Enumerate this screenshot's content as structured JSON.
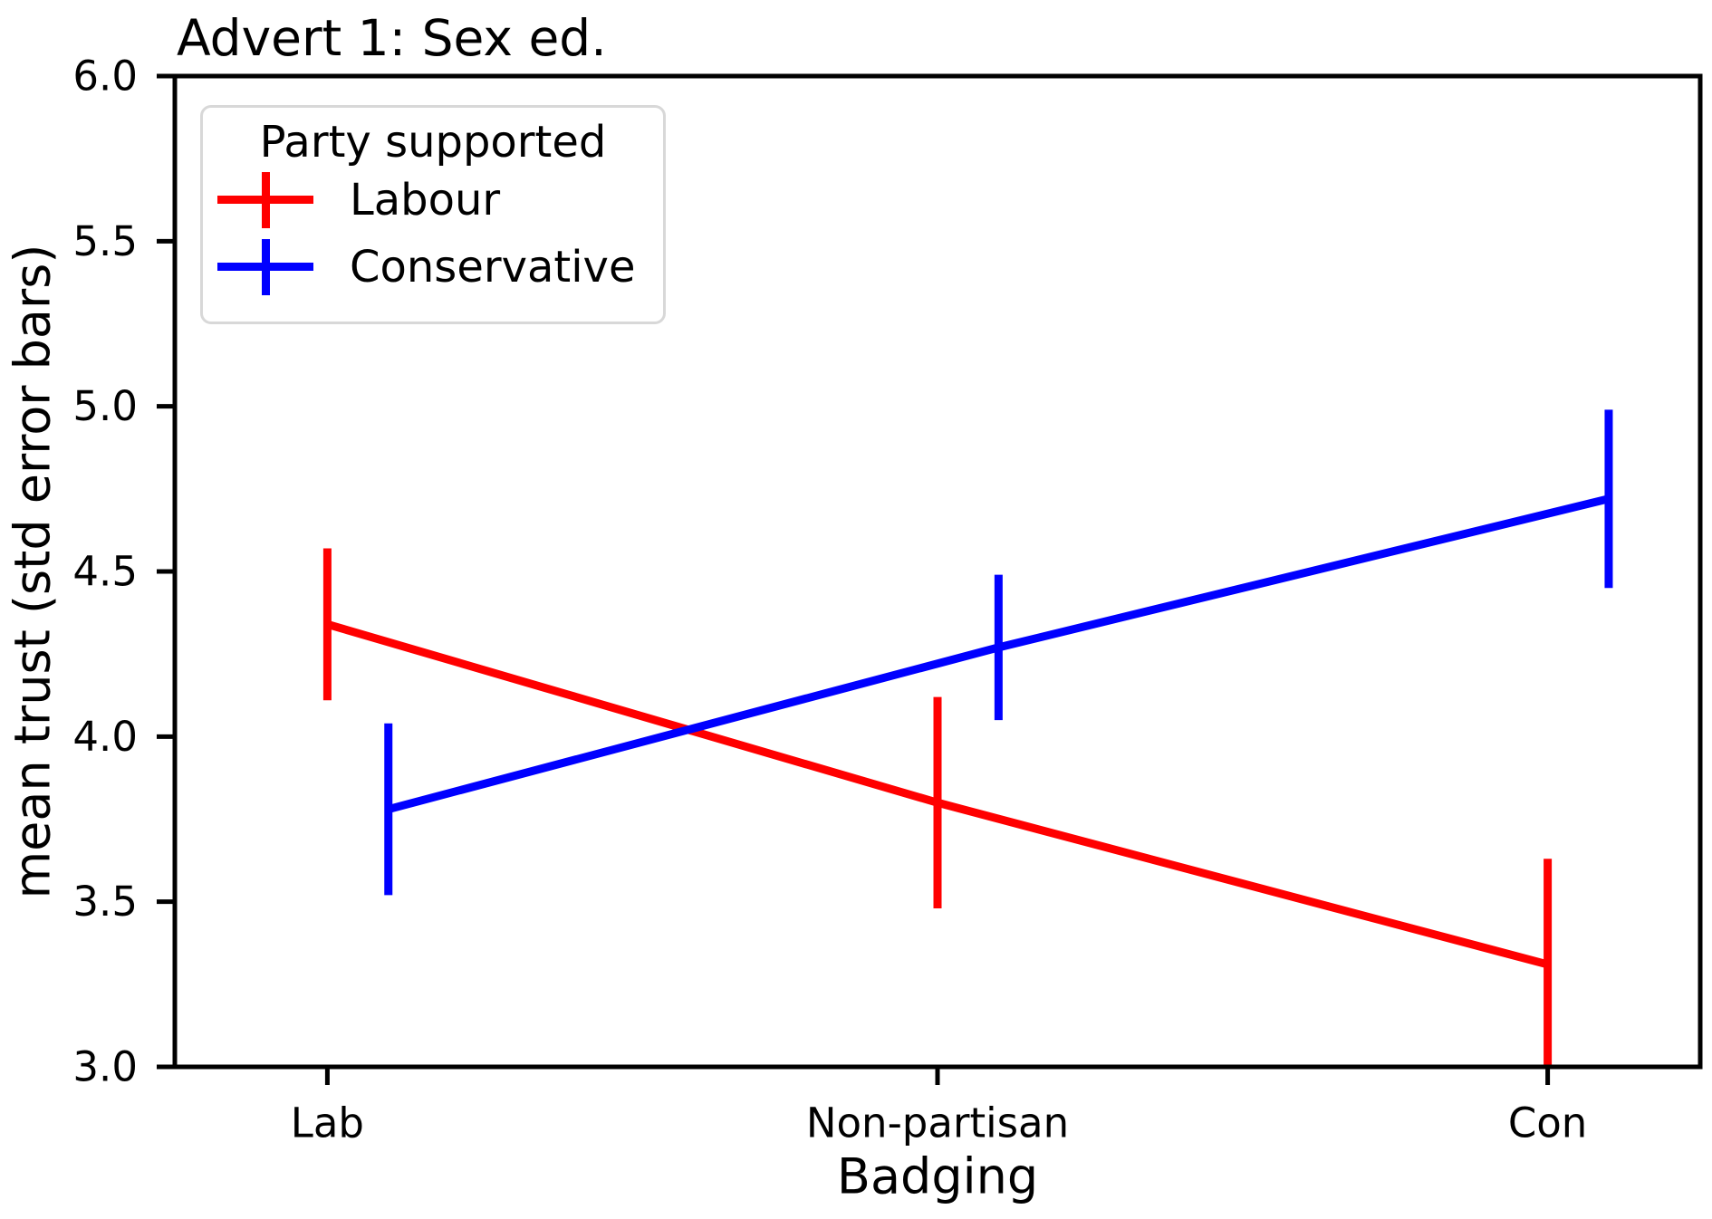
{
  "chart_data": {
    "type": "line",
    "title": "Advert 1: Sex ed.",
    "xlabel": "Badging",
    "ylabel": "mean trust (std error bars)",
    "categories": [
      "Lab",
      "Non-partisan",
      "Con"
    ],
    "xlim": [
      -0.25,
      2.25
    ],
    "ylim": [
      3.0,
      6.0
    ],
    "yticks": [
      3.0,
      3.5,
      4.0,
      4.5,
      5.0,
      5.5,
      6.0
    ],
    "yticklabels": [
      "3.0",
      "3.5",
      "4.0",
      "4.5",
      "5.0",
      "5.5",
      "6.0"
    ],
    "grid": false,
    "error_bars": "std error, no caps, clipped at axes",
    "legend": {
      "title": "Party supported",
      "position": "upper left"
    },
    "series": [
      {
        "name": "Labour",
        "color": "#ff0000",
        "x_offset": 0.0,
        "values": [
          4.34,
          3.8,
          3.31
        ],
        "errors": [
          0.23,
          0.32,
          0.32
        ]
      },
      {
        "name": "Conservative",
        "color": "#0000ff",
        "x_offset": 0.1,
        "values": [
          3.78,
          4.27,
          4.72
        ],
        "errors": [
          0.26,
          0.22,
          0.27
        ]
      }
    ]
  }
}
